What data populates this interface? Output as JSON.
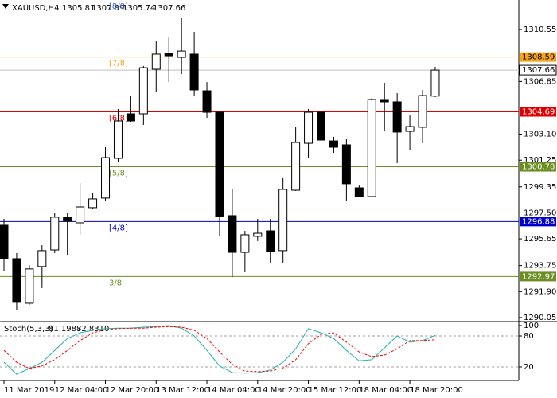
{
  "chart_data": {
    "type": "candlestick",
    "symbol": "XAUUSD,H4",
    "categories": [
      "11 Mar 2019",
      null,
      null,
      null,
      "12 Mar 04:00",
      null,
      null,
      null,
      "12 Mar 20:00",
      null,
      null,
      null,
      "13 Mar 12:00",
      null,
      null,
      null,
      "14 Mar 04:00",
      null,
      null,
      null,
      "14 Mar 20:00",
      null,
      null,
      null,
      "15 Mar 12:00",
      null,
      null,
      null,
      "18 Mar 04:00",
      null,
      null,
      null,
      "18 Mar 20:00",
      null,
      null
    ],
    "open": [
      1296.62,
      1294.24,
      1291.07,
      1293.68,
      1294.86,
      1297.19,
      1296.79,
      1297.87,
      1298.55,
      1301.38,
      1304.55,
      1304.55,
      1307.72,
      1308.85,
      1308.57,
      1308.8,
      1306.19,
      1304.66,
      1297.3,
      1294.69,
      1295.83,
      1296.22,
      1294.81,
      1299.11,
      1302.45,
      1304.66,
      1302.62,
      1302.34,
      1299.28,
      1298.66,
      1305.57,
      1305.4,
      1303.3,
      1303.59,
      1305.81
    ],
    "high": [
      1297.07,
      1294.64,
      1293.79,
      1295.2,
      1297.47,
      1297.47,
      1299.62,
      1298.89,
      1302.17,
      1304.89,
      1305.85,
      1307.95,
      1309.7,
      1309.98,
      1311.4,
      1310.38,
      1306.81,
      1304.66,
      1299.23,
      1296.22,
      1297.07,
      1297.07,
      1300.02,
      1303.59,
      1304.89,
      1306.53,
      1302.91,
      1302.74,
      1299.45,
      1305.68,
      1306.76,
      1306.02,
      1304.43,
      1306.25,
      1307.89
    ],
    "low": [
      1293.39,
      1290.56,
      1290.96,
      1292.15,
      1294.64,
      1294.52,
      1295.94,
      1297.75,
      1298.38,
      1301.15,
      1303.98,
      1303.76,
      1306.13,
      1306.81,
      1307.38,
      1305.79,
      1304.26,
      1295.88,
      1292.94,
      1293.28,
      1295.49,
      1293.96,
      1293.96,
      1299.06,
      1301.38,
      1301.32,
      1301.77,
      1298.32,
      1298.6,
      1298.6,
      1303.3,
      1301.04,
      1302.0,
      1302.45,
      1305.74
    ],
    "close": [
      1294.24,
      1291.13,
      1293.51,
      1294.81,
      1297.19,
      1296.9,
      1297.92,
      1298.49,
      1301.43,
      1304.04,
      1304.04,
      1307.83,
      1308.8,
      1308.68,
      1309.02,
      1306.25,
      1304.66,
      1297.24,
      1294.69,
      1295.94,
      1296.05,
      1294.75,
      1299.17,
      1302.51,
      1304.66,
      1302.68,
      1302.17,
      1299.57,
      1298.66,
      1305.57,
      1305.4,
      1303.25,
      1303.64,
      1305.85,
      1307.66
    ],
    "ylim": [
      1289.82,
      1312.65
    ],
    "yticks": [
      1290.05,
      {
        "value": 1291.9,
        "label": "1291.90"
      },
      1293.75,
      1295.65,
      {
        "value": 1297.5,
        "label": "1297.50"
      },
      1299.35,
      1301.25,
      {
        "value": 1303.1,
        "label": "1303.10"
      },
      1306.85,
      1310.55
    ],
    "top_level_label": "[8/8]",
    "levels": [
      {
        "label": "[7/8]",
        "value": 1308.59,
        "color": "#f5a31a"
      },
      {
        "label": "[6/8]",
        "value": 1304.69,
        "color": "#e00000"
      },
      {
        "label": "[5/8]",
        "value": 1300.78,
        "color": "#6b8e23"
      },
      {
        "label": "[4/8]",
        "value": 1296.88,
        "color": "#0000cd"
      },
      {
        "label": "3/8",
        "value": 1292.97,
        "color": "#6b8e23"
      }
    ],
    "bull_color": "#ffffff",
    "bear_color": "#000000",
    "price_line_color": "#c0c0c0",
    "indicator": {
      "type": "line",
      "title": "Stoch(5,3,3)",
      "readout": [
        "81.1988",
        "72.8310"
      ],
      "ylim": [
        0,
        100
      ],
      "yticks": [
        20,
        80,
        100
      ],
      "levels": [
        20,
        80
      ],
      "series": [
        {
          "color": "#20b2aa",
          "dash": false,
          "values": [
            29,
            6,
            17,
            29,
            52,
            75,
            86,
            91,
            94,
            95,
            95,
            97,
            98,
            100,
            95,
            80,
            52,
            22,
            9,
            8,
            9,
            14,
            29,
            55,
            94,
            86,
            75,
            52,
            32,
            34,
            57,
            80,
            68,
            71,
            81.1988
          ]
        },
        {
          "color": "#ff0000",
          "dash": true,
          "values": [
            52,
            29,
            17,
            22,
            34,
            52,
            71,
            86,
            92,
            94,
            95,
            95,
            97,
            98,
            97,
            91,
            75,
            49,
            25,
            12,
            11,
            12,
            18,
            34,
            65,
            83,
            86,
            68,
            49,
            40,
            43,
            55,
            71,
            71,
            72.831
          ]
        }
      ]
    }
  }
}
